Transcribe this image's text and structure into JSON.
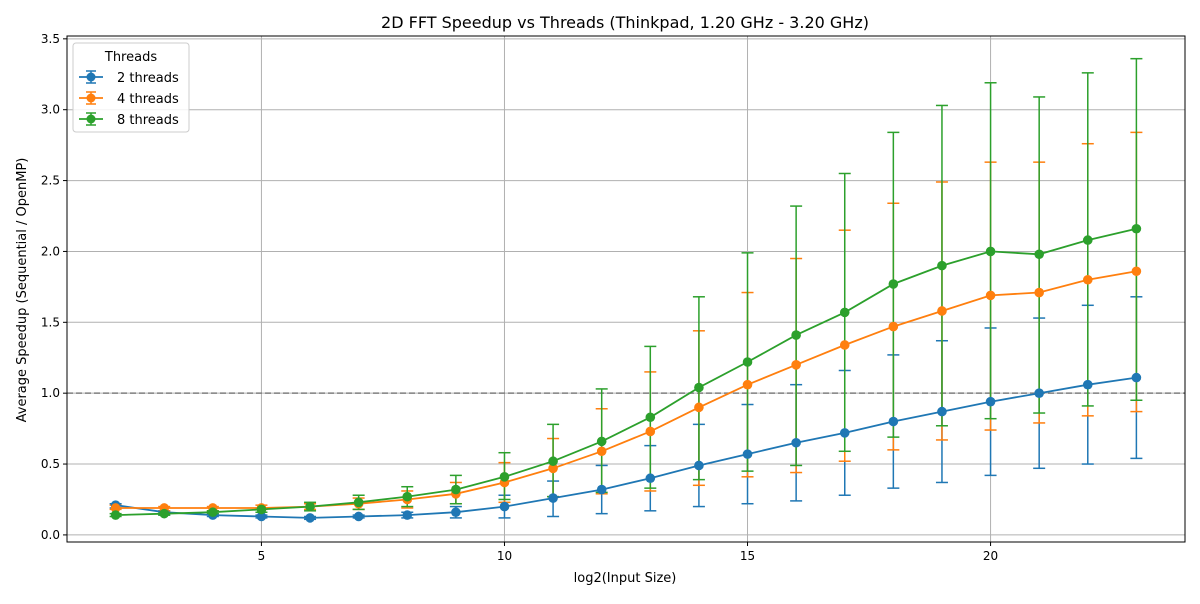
{
  "chart_data": {
    "type": "line",
    "title": "2D FFT Speedup vs Threads (Thinkpad, 1.20 GHz - 3.20 GHz)",
    "xlabel": "log2(Input Size)",
    "ylabel": "Average Speedup (Sequential / OpenMP)",
    "xlim": [
      1.0,
      24.0
    ],
    "ylim": [
      -0.05,
      3.52
    ],
    "xticks": [
      5,
      10,
      15,
      20
    ],
    "xtick_labels": [
      "5",
      "10",
      "15",
      "20"
    ],
    "yticks": [
      0.0,
      0.5,
      1.0,
      1.5,
      2.0,
      2.5,
      3.0,
      3.5
    ],
    "ytick_labels": [
      "0.0",
      "0.5",
      "1.0",
      "1.5",
      "2.0",
      "2.5",
      "3.0",
      "3.5"
    ],
    "grid": true,
    "reference_line": {
      "y": 1.0,
      "style": "dashed",
      "color": "#808080"
    },
    "legend": {
      "title": "Threads",
      "placement": "top-left"
    },
    "x": [
      2,
      3,
      4,
      5,
      6,
      7,
      8,
      9,
      10,
      11,
      12,
      13,
      14,
      15,
      16,
      17,
      18,
      19,
      20,
      21,
      22,
      23
    ],
    "series": [
      {
        "name": "2 threads",
        "color": "#1f77b4",
        "values": [
          0.21,
          0.16,
          0.14,
          0.13,
          0.12,
          0.13,
          0.14,
          0.16,
          0.2,
          0.26,
          0.32,
          0.4,
          0.49,
          0.57,
          0.65,
          0.72,
          0.8,
          0.87,
          0.94,
          1.0,
          1.06,
          1.11
        ],
        "err_low": [
          0.19,
          0.14,
          0.13,
          0.12,
          0.11,
          0.12,
          0.12,
          0.12,
          0.12,
          0.13,
          0.15,
          0.17,
          0.2,
          0.22,
          0.24,
          0.28,
          0.33,
          0.37,
          0.42,
          0.47,
          0.5,
          0.54
        ],
        "err_high": [
          0.22,
          0.17,
          0.15,
          0.14,
          0.13,
          0.14,
          0.16,
          0.2,
          0.28,
          0.38,
          0.49,
          0.63,
          0.78,
          0.92,
          1.06,
          1.16,
          1.27,
          1.37,
          1.46,
          1.53,
          1.62,
          1.68
        ]
      },
      {
        "name": "4 threads",
        "color": "#ff7f0e",
        "values": [
          0.19,
          0.19,
          0.19,
          0.19,
          0.2,
          0.22,
          0.25,
          0.29,
          0.37,
          0.47,
          0.59,
          0.73,
          0.9,
          1.06,
          1.2,
          1.34,
          1.47,
          1.58,
          1.69,
          1.71,
          1.8,
          1.86
        ],
        "err_low": [
          0.18,
          0.17,
          0.17,
          0.18,
          0.18,
          0.18,
          0.19,
          0.22,
          0.23,
          0.27,
          0.29,
          0.31,
          0.35,
          0.41,
          0.44,
          0.52,
          0.6,
          0.67,
          0.74,
          0.79,
          0.84,
          0.87
        ],
        "err_high": [
          0.21,
          0.2,
          0.2,
          0.21,
          0.22,
          0.26,
          0.31,
          0.37,
          0.51,
          0.68,
          0.89,
          1.15,
          1.44,
          1.71,
          1.95,
          2.15,
          2.34,
          2.49,
          2.63,
          2.63,
          2.76,
          2.84
        ]
      },
      {
        "name": "8 threads",
        "color": "#2ca02c",
        "values": [
          0.14,
          0.15,
          0.16,
          0.18,
          0.2,
          0.23,
          0.27,
          0.32,
          0.41,
          0.52,
          0.66,
          0.83,
          1.04,
          1.22,
          1.41,
          1.57,
          1.77,
          1.9,
          2.0,
          1.98,
          2.08,
          2.16
        ],
        "err_low": [
          0.13,
          0.14,
          0.15,
          0.16,
          0.17,
          0.18,
          0.2,
          0.22,
          0.25,
          0.27,
          0.3,
          0.33,
          0.39,
          0.45,
          0.49,
          0.59,
          0.69,
          0.77,
          0.82,
          0.86,
          0.91,
          0.95
        ],
        "err_high": [
          0.15,
          0.16,
          0.17,
          0.19,
          0.23,
          0.28,
          0.34,
          0.42,
          0.58,
          0.78,
          1.03,
          1.33,
          1.68,
          1.99,
          2.32,
          2.55,
          2.84,
          3.03,
          3.19,
          3.09,
          3.26,
          3.36
        ]
      }
    ]
  }
}
